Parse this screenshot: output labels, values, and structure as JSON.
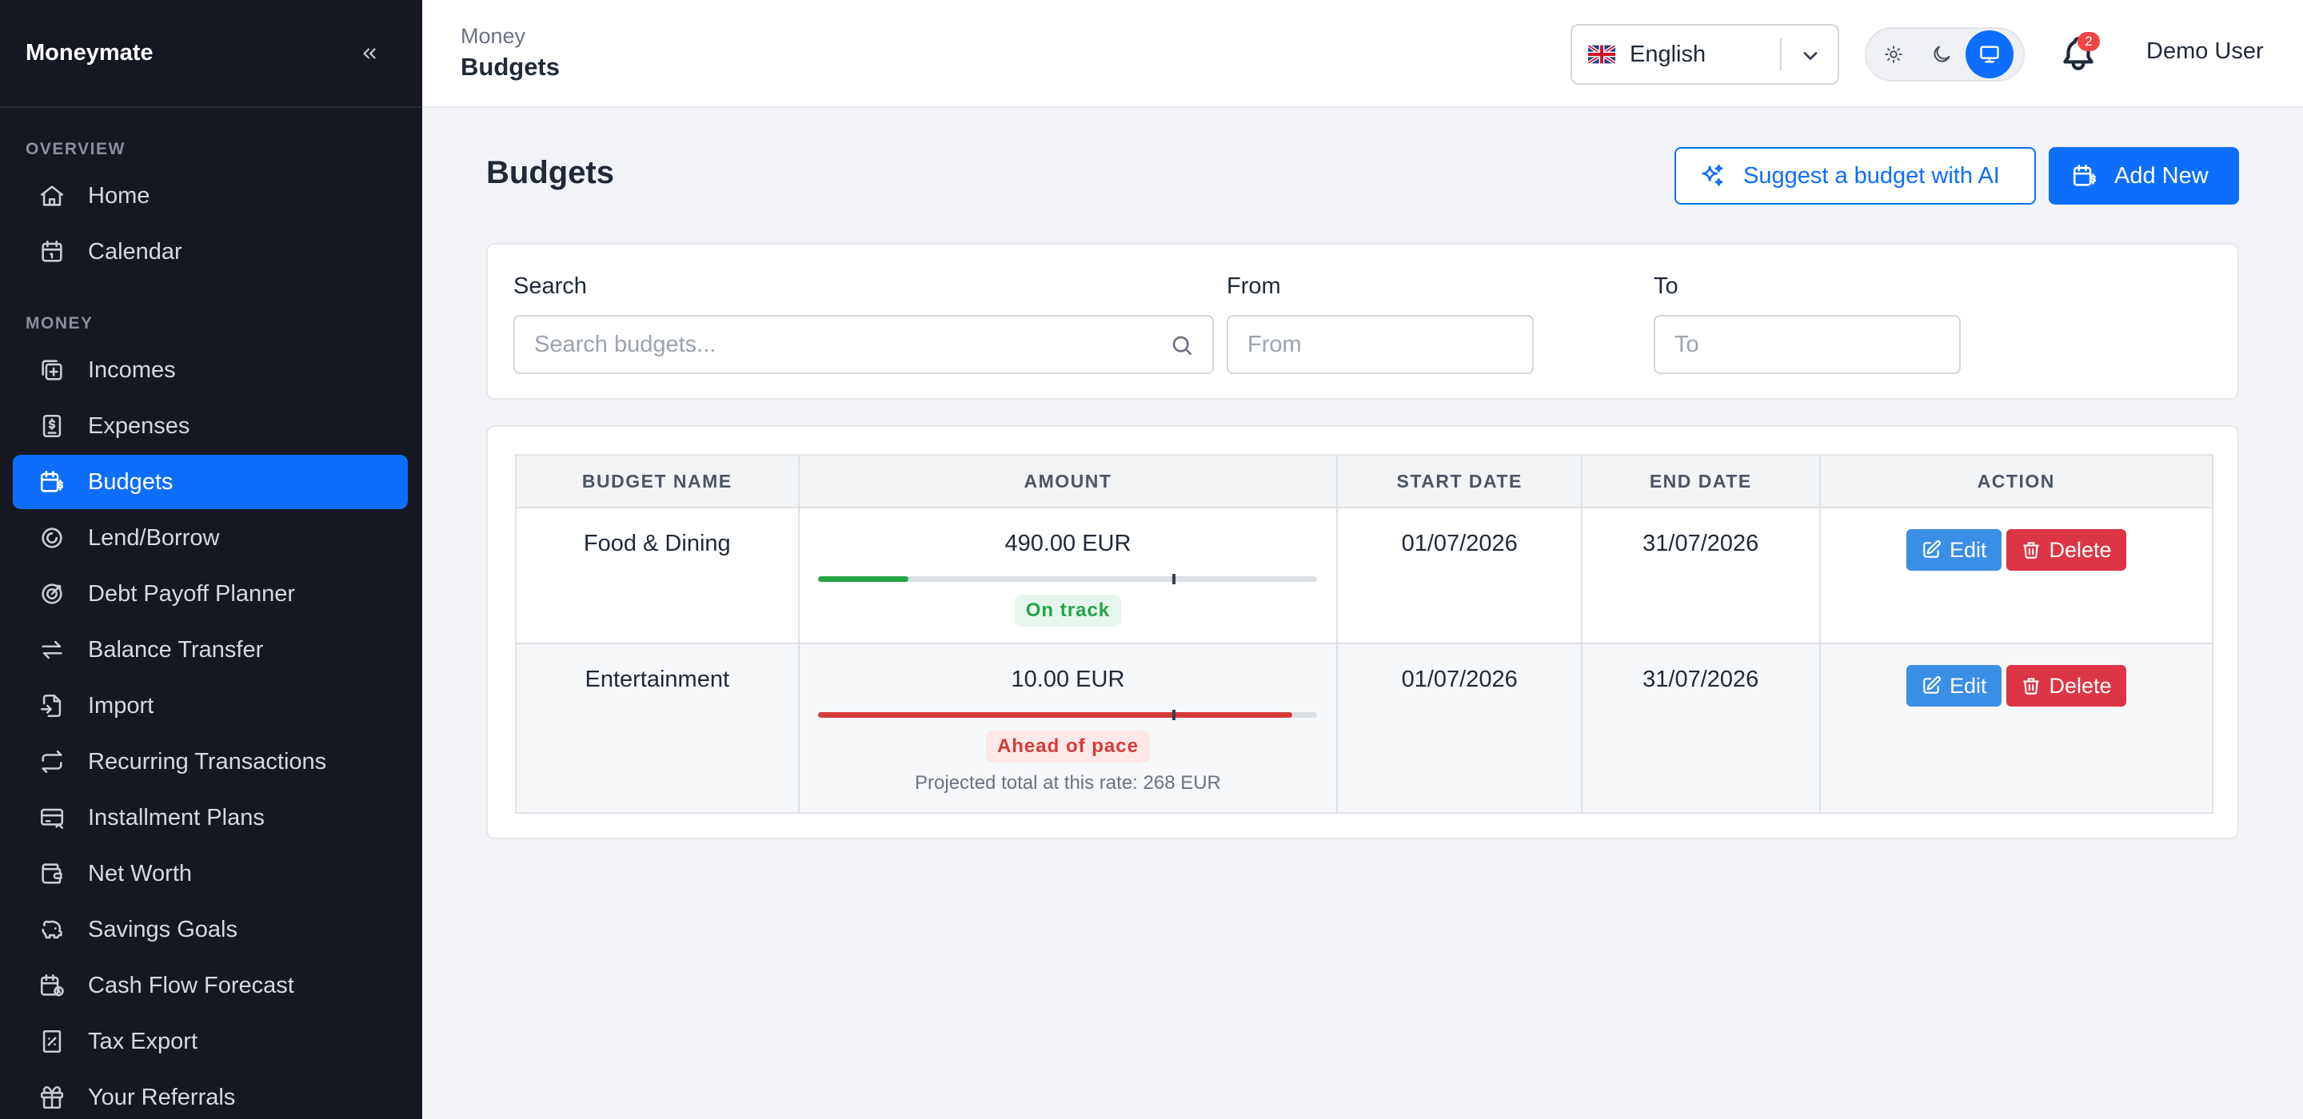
{
  "sidebar": {
    "brand": "Moneymate",
    "sections": [
      {
        "label": "OVERVIEW",
        "items": [
          {
            "label": "Home",
            "icon": "home-icon"
          },
          {
            "label": "Calendar",
            "icon": "calendar-icon"
          }
        ]
      },
      {
        "label": "MONEY",
        "items": [
          {
            "label": "Incomes",
            "icon": "income-icon"
          },
          {
            "label": "Expenses",
            "icon": "expense-icon"
          },
          {
            "label": "Budgets",
            "icon": "budget-icon",
            "active": true
          },
          {
            "label": "Lend/Borrow",
            "icon": "lend-icon"
          },
          {
            "label": "Debt Payoff Planner",
            "icon": "target-icon"
          },
          {
            "label": "Balance Transfer",
            "icon": "transfer-icon"
          },
          {
            "label": "Import",
            "icon": "import-icon"
          },
          {
            "label": "Recurring Transactions",
            "icon": "repeat-icon"
          },
          {
            "label": "Installment Plans",
            "icon": "card-icon"
          },
          {
            "label": "Net Worth",
            "icon": "wallet-icon"
          },
          {
            "label": "Savings Goals",
            "icon": "piggy-bank-icon"
          },
          {
            "label": "Cash Flow Forecast",
            "icon": "forecast-icon"
          },
          {
            "label": "Tax Export",
            "icon": "tax-icon"
          },
          {
            "label": "Your Referrals",
            "icon": "gift-icon"
          }
        ]
      }
    ]
  },
  "header": {
    "breadcrumb_parent": "Money",
    "breadcrumb_current": "Budgets",
    "language": "English",
    "notifications_count": "2",
    "user_name": "Demo User",
    "theme_active": "system"
  },
  "main": {
    "title": "Budgets",
    "ai_button": "Suggest a budget with AI",
    "add_button": "Add New",
    "filters": {
      "search_label": "Search",
      "search_placeholder": "Search budgets...",
      "from_label": "From",
      "from_placeholder": "From",
      "to_label": "To",
      "to_placeholder": "To"
    },
    "table": {
      "headers": [
        "BUDGET NAME",
        "AMOUNT",
        "START DATE",
        "END DATE",
        "ACTION"
      ],
      "rows": [
        {
          "name": "Food & Dining",
          "amount": "490.00 EUR",
          "progress": 0.18,
          "pace_marker": 0.71,
          "status": "On track",
          "status_kind": "good",
          "projected": "",
          "start": "01/07/2026",
          "end": "31/07/2026"
        },
        {
          "name": "Entertainment",
          "amount": "10.00 EUR",
          "progress": 0.95,
          "pace_marker": 0.71,
          "status": "Ahead of pace",
          "status_kind": "bad",
          "projected": "Projected total at this rate: 268 EUR",
          "start": "01/07/2026",
          "end": "31/07/2026"
        }
      ],
      "edit_label": "Edit",
      "delete_label": "Delete"
    }
  },
  "colors": {
    "accent": "#0d6efd",
    "sidebar_bg": "#161821",
    "good": "#22a447",
    "bad": "#d63a3a"
  }
}
